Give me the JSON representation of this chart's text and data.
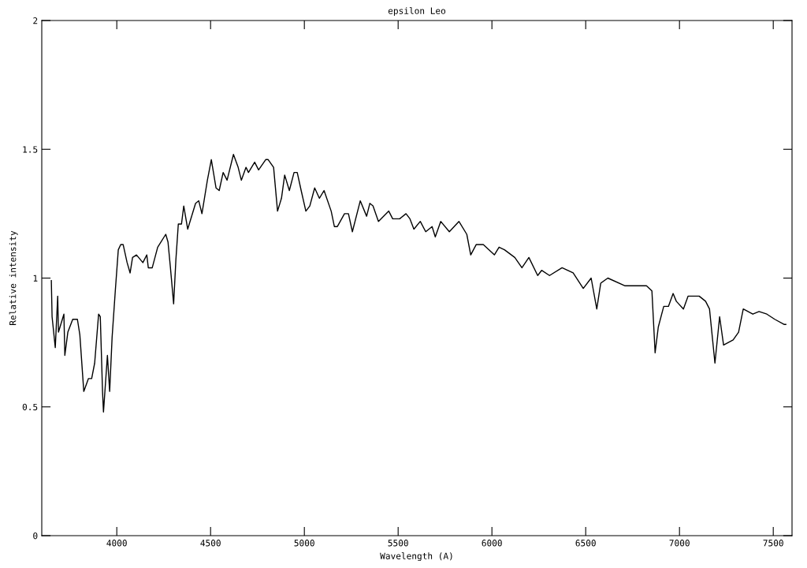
{
  "chart_data": {
    "type": "line",
    "title": "epsilon Leo",
    "xlabel": "Wavelength (A)",
    "ylabel": "Relative intensity",
    "xlim": [
      3600,
      7600
    ],
    "xticks": [
      4000,
      4500,
      5000,
      5500,
      6000,
      6500,
      7000,
      7500
    ],
    "ylim": [
      0,
      2
    ],
    "yticks": [
      0,
      0.5,
      1,
      1.5,
      2
    ],
    "grid": false,
    "legend": false,
    "marker": "none",
    "line_style": "solid",
    "series": [
      {
        "color": "#000000",
        "x": [
          3651,
          3655,
          3672,
          3685,
          3689,
          3718,
          3723,
          3739,
          3765,
          3790,
          3803,
          3824,
          3849,
          3866,
          3882,
          3903,
          3912,
          3924,
          3929,
          3950,
          3962,
          3975,
          3992,
          4008,
          4021,
          4034,
          4055,
          4071,
          4084,
          4105,
          4139,
          4160,
          4168,
          4189,
          4218,
          4261,
          4273,
          4286,
          4303,
          4315,
          4328,
          4345,
          4357,
          4378,
          4420,
          4437,
          4454,
          4483,
          4504,
          4529,
          4546,
          4567,
          4588,
          4622,
          4647,
          4664,
          4689,
          4702,
          4735,
          4756,
          4794,
          4807,
          4836,
          4857,
          4878,
          4895,
          4920,
          4945,
          4962,
          4983,
          5008,
          5029,
          5055,
          5080,
          5105,
          5143,
          5160,
          5176,
          5214,
          5235,
          5256,
          5298,
          5332,
          5349,
          5366,
          5395,
          5450,
          5471,
          5508,
          5542,
          5563,
          5584,
          5618,
          5647,
          5681,
          5698,
          5727,
          5773,
          5824,
          5866,
          5887,
          5916,
          5954,
          6013,
          6038,
          6067,
          6122,
          6160,
          6197,
          6244,
          6265,
          6307,
          6374,
          6433,
          6487,
          6529,
          6559,
          6580,
          6618,
          6710,
          6824,
          6853,
          6870,
          6887,
          6916,
          6941,
          6966,
          6983,
          7021,
          7046,
          7105,
          7139,
          7160,
          7189,
          7214,
          7235,
          7286,
          7315,
          7340,
          7391,
          7424,
          7466,
          7508,
          7559,
          7567
        ],
        "values": [
          0.99,
          0.85,
          0.73,
          0.93,
          0.79,
          0.86,
          0.7,
          0.79,
          0.84,
          0.84,
          0.78,
          0.56,
          0.61,
          0.61,
          0.67,
          0.86,
          0.85,
          0.56,
          0.48,
          0.7,
          0.56,
          0.77,
          0.95,
          1.11,
          1.13,
          1.13,
          1.06,
          1.02,
          1.08,
          1.09,
          1.06,
          1.09,
          1.04,
          1.04,
          1.12,
          1.17,
          1.14,
          1.04,
          0.9,
          1.07,
          1.21,
          1.21,
          1.28,
          1.19,
          1.29,
          1.3,
          1.25,
          1.38,
          1.46,
          1.35,
          1.34,
          1.41,
          1.38,
          1.48,
          1.43,
          1.38,
          1.43,
          1.41,
          1.45,
          1.42,
          1.46,
          1.46,
          1.43,
          1.26,
          1.31,
          1.4,
          1.34,
          1.41,
          1.41,
          1.34,
          1.26,
          1.28,
          1.35,
          1.31,
          1.34,
          1.26,
          1.2,
          1.2,
          1.25,
          1.25,
          1.18,
          1.3,
          1.24,
          1.29,
          1.28,
          1.22,
          1.26,
          1.23,
          1.23,
          1.25,
          1.23,
          1.19,
          1.22,
          1.18,
          1.2,
          1.16,
          1.22,
          1.18,
          1.22,
          1.17,
          1.09,
          1.13,
          1.13,
          1.09,
          1.12,
          1.11,
          1.08,
          1.04,
          1.08,
          1.01,
          1.03,
          1.01,
          1.04,
          1.02,
          0.96,
          1.0,
          0.88,
          0.98,
          1.0,
          0.97,
          0.97,
          0.95,
          0.71,
          0.81,
          0.89,
          0.89,
          0.94,
          0.91,
          0.88,
          0.93,
          0.93,
          0.91,
          0.88,
          0.67,
          0.85,
          0.74,
          0.76,
          0.79,
          0.88,
          0.86,
          0.87,
          0.86,
          0.84,
          0.82,
          0.82
        ]
      }
    ]
  }
}
